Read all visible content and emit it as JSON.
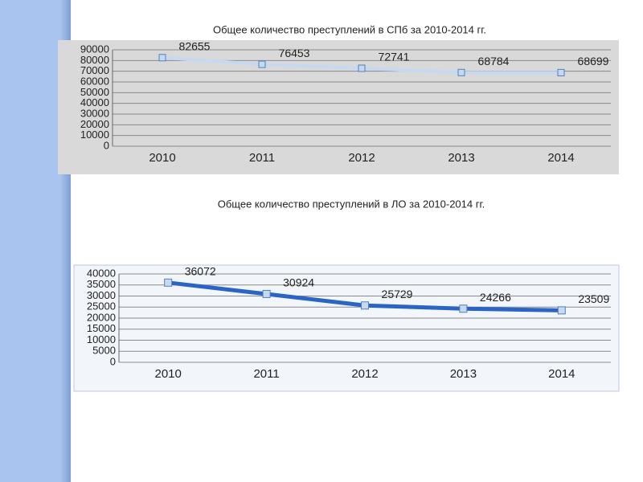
{
  "chart_data": [
    {
      "type": "line",
      "title": "Общее количество преступлений в СПб  за 2010-2014 гг.",
      "categories": [
        "2010",
        "2011",
        "2012",
        "2013",
        "2014"
      ],
      "values": [
        82655,
        76453,
        72741,
        68784,
        68699
      ],
      "color": "#c6d9f0",
      "ylim": [
        0,
        90000
      ],
      "yticks": [
        0,
        10000,
        20000,
        30000,
        40000,
        50000,
        60000,
        70000,
        80000,
        90000
      ],
      "grid": true
    },
    {
      "type": "line",
      "title": "Общее количество преступлений в ЛО  за 2010-2014 гг.",
      "categories": [
        "2010",
        "2011",
        "2012",
        "2013",
        "2014"
      ],
      "values": [
        36072,
        30924,
        25729,
        24266,
        23509
      ],
      "color": "#2a64c5",
      "ylim": [
        0,
        40000
      ],
      "yticks": [
        0,
        5000,
        10000,
        15000,
        20000,
        25000,
        30000,
        35000,
        40000
      ],
      "grid": true
    }
  ]
}
